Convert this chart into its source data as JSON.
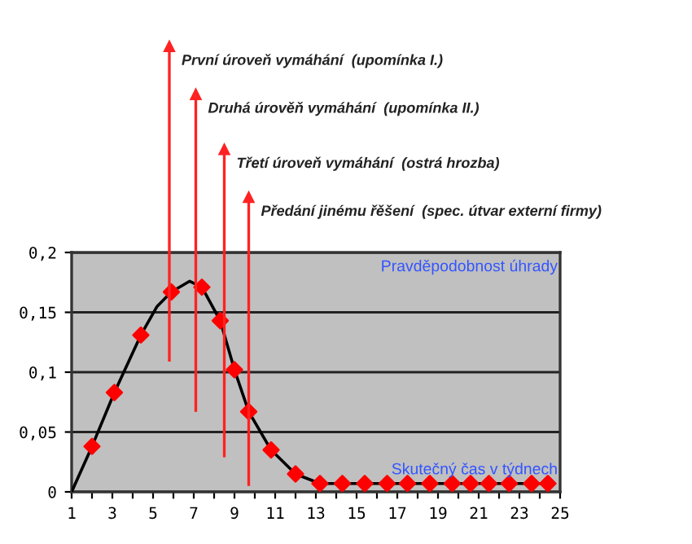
{
  "chart_data": {
    "type": "line",
    "xlabel": "Skutečný čas v týdnech",
    "ylabel": "Pravděpodobnost úhrady",
    "xlim": [
      1,
      25
    ],
    "ylim": [
      0,
      0.2
    ],
    "xticks": [
      1,
      {
        "value": 2,
        "label": null
      },
      3,
      {
        "value": 4,
        "label": null
      },
      5,
      {
        "value": 6,
        "label": null
      },
      7,
      {
        "value": 8,
        "label": null
      },
      9,
      {
        "value": 10,
        "label": null
      },
      11,
      {
        "value": 12,
        "label": null
      },
      13,
      {
        "value": 14,
        "label": null
      },
      15,
      {
        "value": 16,
        "label": null
      },
      17,
      {
        "value": 18,
        "label": null
      },
      19,
      {
        "value": 20,
        "label": null
      },
      21,
      {
        "value": 22,
        "label": null
      },
      23,
      {
        "value": 24,
        "label": null
      },
      25
    ],
    "yticks": [
      {
        "value": 0,
        "label": "0"
      },
      {
        "value": 0.05,
        "label": "0,05"
      },
      {
        "value": 0.1,
        "label": "0,1"
      },
      {
        "value": 0.15,
        "label": "0,15"
      },
      {
        "value": 0.2,
        "label": "0,2"
      }
    ],
    "grid": "y",
    "series": [
      {
        "color": "#000000",
        "marker": "none",
        "x": [
          1,
          2.0,
          3.1,
          4.4,
          5.2,
          5.9,
          6.8,
          7.4,
          8.3,
          9.0,
          9.7,
          10.8,
          12.0,
          13.2,
          14.3,
          24.4
        ],
        "values": [
          0,
          0.038,
          0.083,
          0.131,
          0.155,
          0.167,
          0.176,
          0.171,
          0.143,
          0.102,
          0.067,
          0.035,
          0.015,
          0.007,
          0.007,
          0.007
        ]
      },
      {
        "type": "scatter",
        "color": "#ff0000",
        "marker": "diamond",
        "x": [
          2.0,
          3.1,
          4.4,
          5.9,
          7.4,
          8.3,
          9.0,
          9.7,
          10.8,
          12.0,
          13.2,
          14.3,
          15.4,
          16.5,
          17.5,
          18.6,
          19.7,
          20.6,
          21.5,
          22.5,
          23.6,
          24.4
        ],
        "values": [
          0.038,
          0.083,
          0.131,
          0.167,
          0.171,
          0.143,
          0.102,
          0.067,
          0.035,
          0.015,
          0.007,
          0.007,
          0.007,
          0.007,
          0.007,
          0.007,
          0.007,
          0.007,
          0.007,
          0.007,
          0.007,
          0.007
        ]
      }
    ],
    "ref_lines": [
      {
        "axis": "x",
        "value": 5.8,
        "label": "První úroveň vymáhání  (upomínka I.)",
        "color": "#ff2222"
      },
      {
        "axis": "x",
        "value": 7.1,
        "label": "Druhá úrověň vymáhání  (upomínka II.)",
        "color": "#ff2222"
      },
      {
        "axis": "x",
        "value": 8.5,
        "label": "Třetí úroveň vymáhání  (ostrá hrozba)",
        "color": "#ff2222"
      },
      {
        "axis": "x",
        "value": 9.7,
        "label": "Předání jinému řěšení  (spec. útvar externí firmy)",
        "color": "#ff2222"
      }
    ]
  }
}
